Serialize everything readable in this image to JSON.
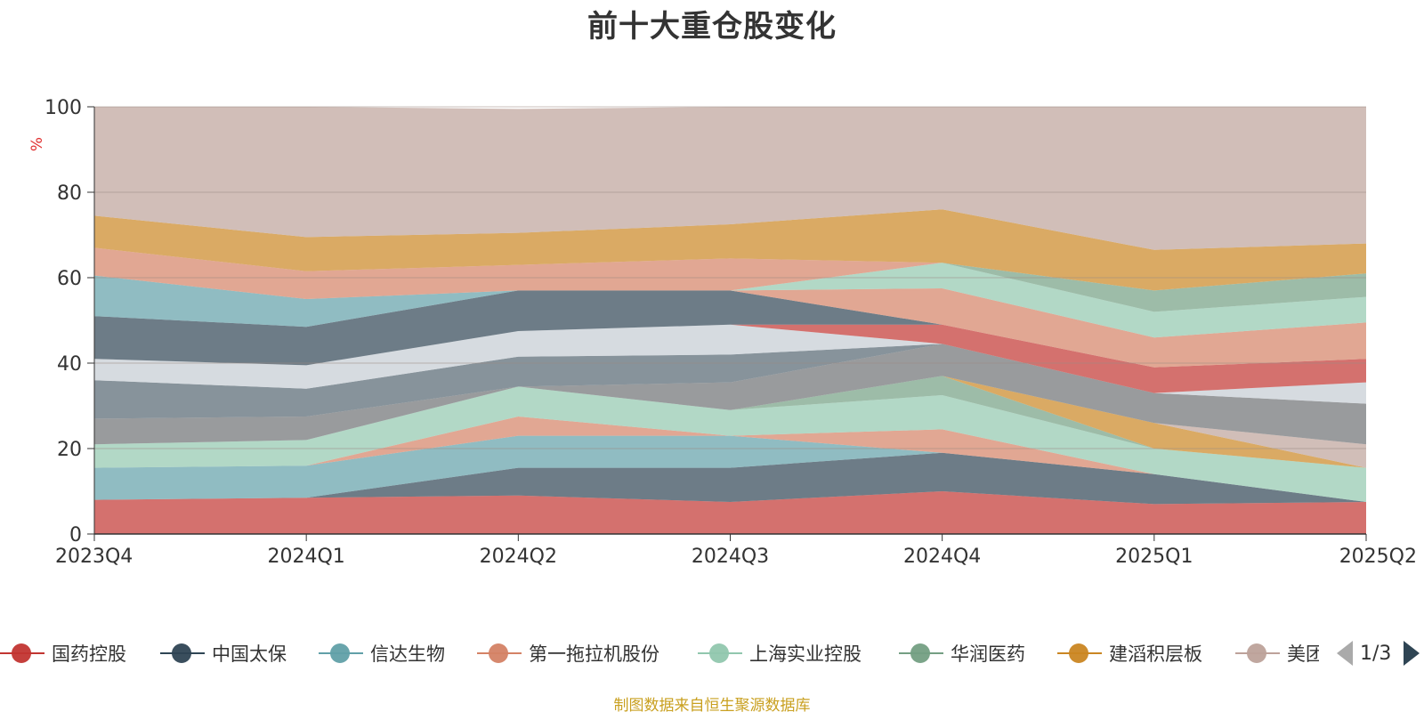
{
  "chart_data": {
    "type": "area",
    "stacked": true,
    "title": "前十大重仓股变化",
    "ylabel": "%",
    "ylim": [
      0,
      100
    ],
    "yticks": [
      0,
      20,
      40,
      60,
      80,
      100
    ],
    "categories": [
      "2023Q4",
      "2024Q1",
      "2024Q2",
      "2024Q3",
      "2024Q4",
      "2025Q1",
      "2025Q2"
    ],
    "grid": true,
    "legend_position": "bottom",
    "series": [
      {
        "name": "国药控股",
        "color": "#c23531",
        "values": [
          8.0,
          8.5,
          9.0,
          7.5,
          10.0,
          7.0,
          7.5
        ]
      },
      {
        "name": "中国太保",
        "color": "#2f4554",
        "values": [
          0.0,
          0.0,
          6.5,
          8.0,
          9.0,
          7.0,
          0.0
        ]
      },
      {
        "name": "信达生物",
        "color": "#61a0a8",
        "values": [
          7.5,
          7.5,
          7.5,
          7.5,
          0.0,
          0.0,
          0.0
        ]
      },
      {
        "name": "第一拖拉机股份",
        "color": "#d48265",
        "values": [
          0.0,
          0.0,
          4.5,
          0.0,
          5.5,
          0.0,
          0.0
        ]
      },
      {
        "name": "上海实业控股",
        "color": "#91c7ae",
        "values": [
          5.5,
          6.0,
          7.0,
          6.0,
          8.0,
          6.0,
          8.0
        ]
      },
      {
        "name": "华润医药",
        "color": "#749f83",
        "values": [
          0.0,
          0.0,
          0.0,
          0.0,
          4.5,
          0.0,
          0.0
        ]
      },
      {
        "name": "建滔积层板",
        "color": "#ca8622",
        "values": [
          0.0,
          0.0,
          0.0,
          0.0,
          0.0,
          6.0,
          0.0
        ]
      },
      {
        "name": "美团",
        "color": "#bda29a",
        "values": [
          0.0,
          0.0,
          0.0,
          0.0,
          0.0,
          0.0,
          5.5
        ]
      },
      {
        "name": "",
        "color": "#6e7074",
        "values": [
          6.0,
          5.5,
          0.0,
          6.5,
          7.5,
          7.0,
          9.5
        ]
      },
      {
        "name": "",
        "color": "#546570",
        "values": [
          9.0,
          6.5,
          7.0,
          6.5,
          0.0,
          0.0,
          0.0
        ]
      },
      {
        "name": "",
        "color": "#c4ccd3",
        "values": [
          5.0,
          5.5,
          6.0,
          7.0,
          0.0,
          0.0,
          5.0
        ]
      },
      {
        "name": "",
        "color": "#c23531",
        "values": [
          0.0,
          0.0,
          0.0,
          0.0,
          4.5,
          6.0,
          5.5
        ]
      },
      {
        "name": "",
        "color": "#2f4554",
        "values": [
          10.0,
          9.0,
          9.5,
          8.0,
          0.0,
          0.0,
          0.0
        ]
      },
      {
        "name": "",
        "color": "#d48265",
        "values": [
          0.0,
          0.0,
          0.0,
          0.0,
          8.5,
          7.0,
          8.5
        ]
      },
      {
        "name": "",
        "color": "#61a0a8",
        "values": [
          9.5,
          6.5,
          0.0,
          0.0,
          0.0,
          0.0,
          0.0
        ]
      },
      {
        "name": "",
        "color": "#91c7ae",
        "values": [
          0.0,
          0.0,
          0.0,
          0.0,
          6.0,
          6.0,
          6.0
        ]
      },
      {
        "name": "",
        "color": "#d48265",
        "values": [
          6.5,
          6.5,
          6.0,
          7.5,
          0.0,
          0.0,
          0.0
        ]
      },
      {
        "name": "",
        "color": "#749f83",
        "values": [
          0.0,
          0.0,
          0.0,
          0.0,
          0.0,
          5.0,
          5.5
        ]
      },
      {
        "name": "",
        "color": "#ca8622",
        "values": [
          7.5,
          8.0,
          7.5,
          8.0,
          12.5,
          9.5,
          7.0
        ]
      },
      {
        "name": "",
        "color": "#bda29a",
        "values": [
          25.5,
          30.5,
          29.0,
          27.5,
          24.0,
          33.5,
          32.0
        ]
      }
    ]
  },
  "legend": {
    "items": [
      "国药控股",
      "中国太保",
      "信达生物",
      "第一拖拉机股份",
      "上海实业控股",
      "华润医药",
      "建滔积层板",
      "美团"
    ],
    "colors": [
      "#c23531",
      "#2f4554",
      "#61a0a8",
      "#d48265",
      "#91c7ae",
      "#749f83",
      "#ca8622",
      "#bda29a"
    ],
    "page_text": "1/3"
  },
  "source_text": "制图数据来自恒生聚源数据库"
}
